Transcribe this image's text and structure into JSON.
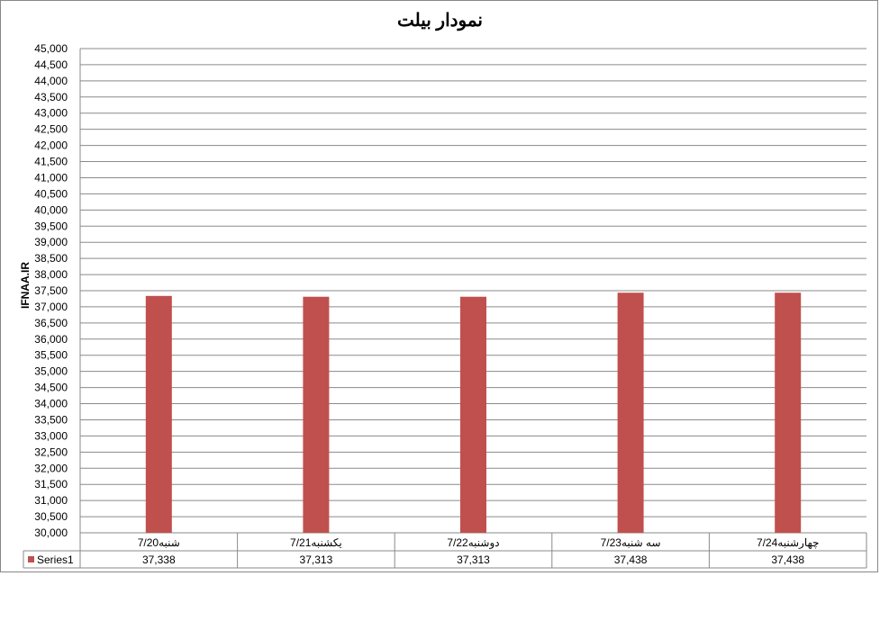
{
  "chart_data": {
    "type": "bar",
    "title": "نمودار بیلت",
    "ylabel": "IFNAA.IR",
    "xlabel": "",
    "categories": [
      "7/20شنبه",
      "7/21یکشنبه",
      "7/22دوشنبه",
      "7/23سه شنبه",
      "7/24چهارشنبه"
    ],
    "series": [
      {
        "name": "Series1",
        "values": [
          37338,
          37313,
          37313,
          37438,
          37438
        ],
        "color": "#C0504D"
      }
    ],
    "value_labels": [
      "37,338",
      "37,313",
      "37,313",
      "37,438",
      "37,438"
    ],
    "ylim": [
      30000,
      45000
    ],
    "ytick_step": 500,
    "grid": true,
    "legend": "data-table"
  }
}
